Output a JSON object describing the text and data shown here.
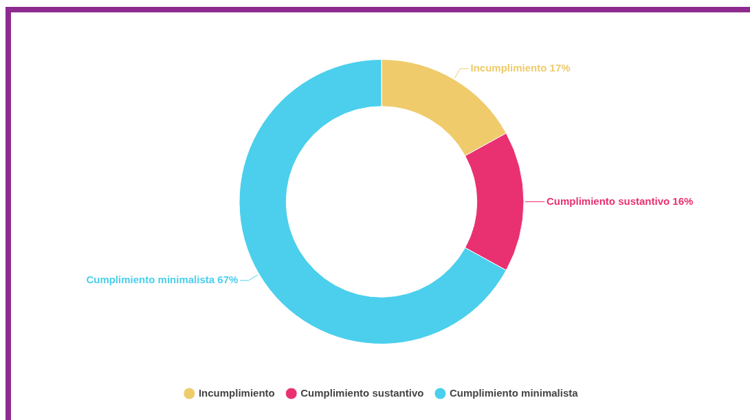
{
  "chart_data": {
    "type": "donut",
    "categories": [
      "Incumplimiento",
      "Cumplimiento sustantivo",
      "Cumplimiento minimalista"
    ],
    "values": [
      17,
      16,
      67
    ],
    "colors": [
      "#efcb6b",
      "#e93172",
      "#4bcfed"
    ],
    "value_labels": [
      "17%",
      "16%",
      "67%"
    ],
    "legend": "bottom"
  }
}
